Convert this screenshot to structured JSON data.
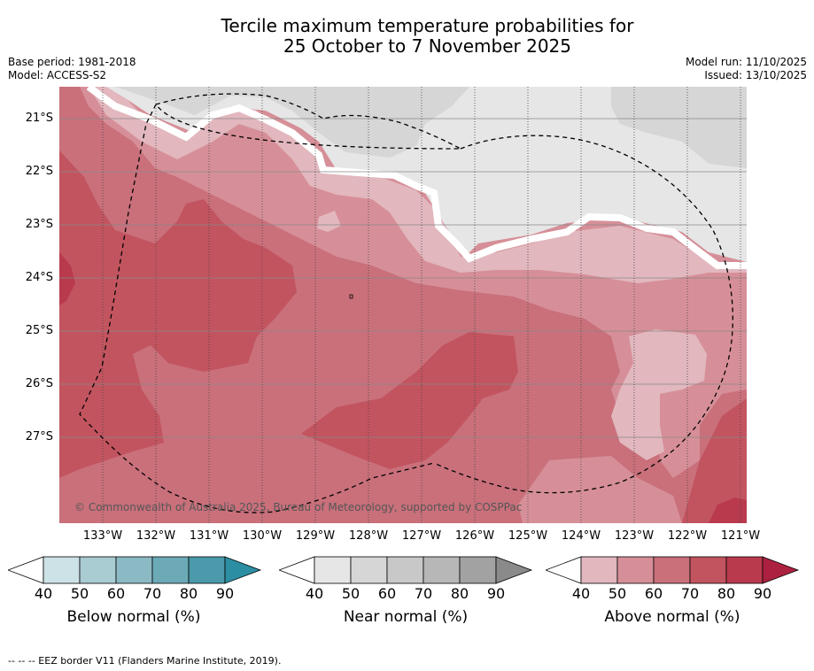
{
  "title": {
    "line1": "Tercile maximum temperature probabilities for",
    "line2": "25 October to 7 November 2025"
  },
  "meta": {
    "base_period": "Base period: 1981-2018",
    "model": "Model: ACCESS-S2",
    "model_run": "Model run: 11/10/2025",
    "issued": "Issued: 13/10/2025"
  },
  "map": {
    "lat_labels": [
      "21°S",
      "22°S",
      "23°S",
      "24°S",
      "25°S",
      "26°S",
      "27°S"
    ],
    "lon_labels": [
      "133°W",
      "132°W",
      "131°W",
      "130°W",
      "129°W",
      "128°W",
      "127°W",
      "126°W",
      "125°W",
      "124°W",
      "123°W",
      "122°W",
      "121°W"
    ],
    "copyright": "© Commonwealth of Australia 2025, Bureau of Meteorology, supported by COSPPac",
    "eez_label": "EEZ border"
  },
  "legend": {
    "below": {
      "label": "Below normal (%)",
      "ticks": [
        "40",
        "50",
        "60",
        "70",
        "80",
        "90"
      ],
      "colors": [
        "#cde2e7",
        "#a9cbd2",
        "#8bbac4",
        "#6caab7",
        "#4a9aab",
        "#2c8ea3"
      ]
    },
    "near": {
      "label": "Near normal (%)",
      "ticks": [
        "40",
        "50",
        "60",
        "70",
        "80",
        "90"
      ],
      "colors": [
        "#e6e6e6",
        "#d6d6d6",
        "#c8c8c8",
        "#b7b7b7",
        "#a2a2a2",
        "#8a8a8a"
      ]
    },
    "above": {
      "label": "Above normal (%)",
      "ticks": [
        "40",
        "50",
        "60",
        "70",
        "80",
        "90"
      ],
      "colors": [
        "#e2b7be",
        "#d68f98",
        "#c9707b",
        "#c2545f",
        "#b93a4d",
        "#ad2140"
      ]
    }
  },
  "footnote": "--  --  -- EEZ border V11 (Flanders Marine Institute, 2019)."
}
